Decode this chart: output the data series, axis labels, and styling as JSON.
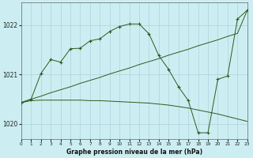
{
  "title": "Graphe pression niveau de la mer (hPa)",
  "bg_color": "#cceef2",
  "line_color": "#2d5a1b",
  "grid_color": "#aad4da",
  "xlim": [
    0,
    23
  ],
  "ylim": [
    1019.7,
    1022.45
  ],
  "yticks": [
    1020,
    1021,
    1022
  ],
  "xticks": [
    0,
    1,
    2,
    3,
    4,
    5,
    6,
    7,
    8,
    9,
    10,
    11,
    12,
    13,
    14,
    15,
    16,
    17,
    18,
    19,
    20,
    21,
    22,
    23
  ],
  "series1_x": [
    0,
    1,
    2,
    3,
    4,
    5,
    6,
    7,
    8,
    9,
    10,
    11,
    12,
    13,
    14,
    15,
    16,
    17,
    18,
    19,
    20,
    21,
    22,
    23
  ],
  "series1_y": [
    1020.43,
    1020.47,
    1020.48,
    1020.48,
    1020.48,
    1020.48,
    1020.48,
    1020.47,
    1020.47,
    1020.46,
    1020.45,
    1020.44,
    1020.43,
    1020.42,
    1020.4,
    1020.38,
    1020.35,
    1020.32,
    1020.28,
    1020.24,
    1020.2,
    1020.15,
    1020.1,
    1020.05
  ],
  "series2_x": [
    0,
    1,
    2,
    3,
    4,
    5,
    6,
    7,
    8,
    9,
    10,
    11,
    12,
    13,
    14,
    15,
    16,
    17,
    18,
    19,
    20,
    21,
    22,
    23
  ],
  "series2_y": [
    1020.43,
    1020.5,
    1020.56,
    1020.63,
    1020.69,
    1020.75,
    1020.82,
    1020.88,
    1020.94,
    1021.01,
    1021.07,
    1021.13,
    1021.2,
    1021.26,
    1021.32,
    1021.39,
    1021.45,
    1021.51,
    1021.58,
    1021.64,
    1021.7,
    1021.77,
    1021.83,
    1022.3
  ],
  "series3_x": [
    0,
    1,
    2,
    3,
    4,
    5,
    6,
    7,
    8,
    9,
    10,
    11,
    12,
    13,
    14,
    15,
    16,
    17,
    18,
    19,
    20,
    21,
    22,
    23
  ],
  "series3_y": [
    1020.43,
    1020.5,
    1021.02,
    1021.3,
    1021.25,
    1021.52,
    1021.53,
    1021.68,
    1021.72,
    1021.87,
    1021.97,
    1022.02,
    1022.02,
    1021.82,
    1021.38,
    1021.1,
    1020.75,
    1020.47,
    1019.82,
    1019.82,
    1020.9,
    1020.97,
    1022.12,
    1022.3
  ]
}
